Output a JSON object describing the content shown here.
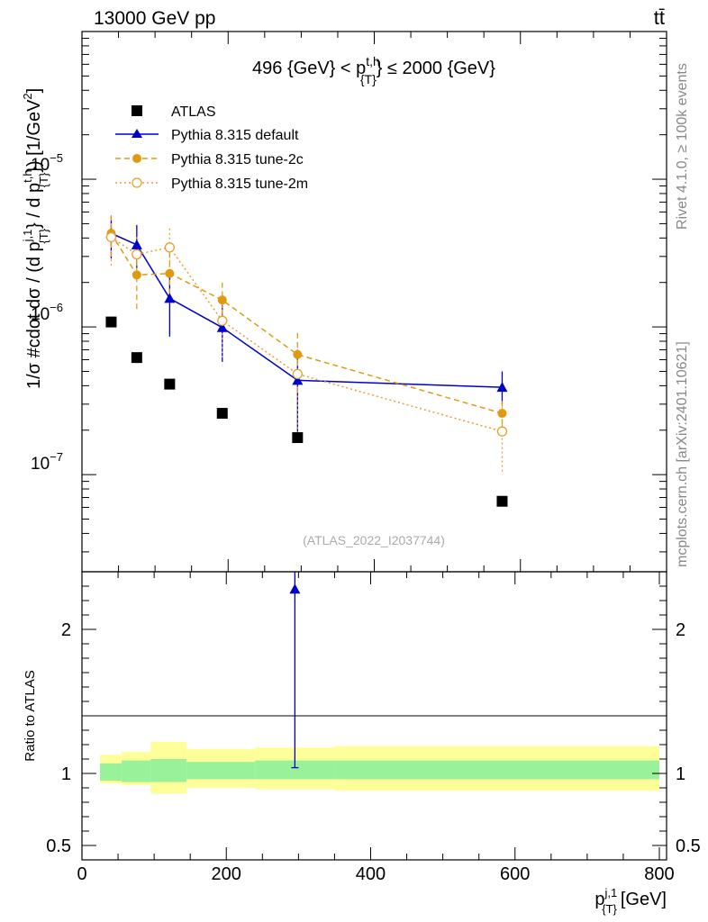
{
  "header": {
    "energy_label": "13000 GeV pp",
    "process_label": "tt̄"
  },
  "side_text": {
    "rivet_label": "Rivet 4.1.0, ≥ 100k events",
    "source_label": "mcplots.cern.ch [arXiv:2401.10621]"
  },
  "colors": {
    "atlas": "#000000",
    "default": "#0000cc",
    "tune2c": "#e09a10",
    "tune2m": "#e6a030",
    "band_inner": "#99f299",
    "band_outer": "#ffff99"
  },
  "chart_data": [
    {
      "type": "scatter",
      "panel": "main",
      "title": "496 {GeV} < p_{T}^{t,h} ≤ 2000 {GeV}",
      "title_parts": {
        "prefix": "496 {GeV} < p",
        "sup": "t,h",
        "sub": "{T}",
        "suffix": "} ≤ 2000 {GeV}"
      },
      "ylabel": "1/σ #cdot dσ / (d p_{T}^{j,1} / d p_{T}^{t,h}) [1/GeV²]",
      "ylabel_parts": {
        "a": "1/σ #cdot dσ / (d p",
        "sup1": "j,1",
        "sub1": "{T}",
        "b": "} / d p",
        "sup2": "t,h",
        "sub2": "{T}",
        "c": "}) [1/GeV",
        "c_sup": "2",
        "d": "]"
      },
      "xlim": [
        0,
        800
      ],
      "ylim": [
        2.2e-08,
        0.0001
      ],
      "yscale": "log",
      "y_tick_labels": [
        {
          "value": 1e-07,
          "base": "10",
          "exp": "−7"
        },
        {
          "value": 1e-06,
          "base": "10",
          "exp": "−6"
        },
        {
          "value": 1e-05,
          "base": "10",
          "exp": "−5"
        }
      ],
      "watermark": "(ATLAS_2022_I2037744)",
      "legend": [
        "ATLAS",
        "Pythia 8.315 default",
        "Pythia 8.315 tune-2c",
        "Pythia 8.315 tune-2m"
      ],
      "series": [
        {
          "name": "ATLAS",
          "style": "square",
          "x": [
            40,
            75,
            120,
            192,
            295,
            575
          ],
          "y": [
            1.08e-06,
            6.2e-07,
            4.1e-07,
            2.6e-07,
            1.78e-07,
            6.6e-08
          ]
        },
        {
          "name": "Pythia 8.315 default",
          "style": "triangle-solid",
          "x": [
            40,
            75,
            120,
            192,
            295,
            575
          ],
          "y": [
            4.3e-06,
            3.6e-06,
            1.56e-06,
            9.9e-07,
            4.35e-07,
            3.9e-07
          ],
          "err_lo": [
            2.9e-06,
            2.5e-06,
            8.6e-07,
            5.8e-07,
            1.8e-07,
            3e-07
          ],
          "err_hi": [
            5.6e-06,
            4.9e-06,
            2.2e-06,
            1.4e-06,
            7e-07,
            5e-07
          ]
        },
        {
          "name": "Pythia 8.315 tune-2c",
          "style": "circle-dashed",
          "x": [
            40,
            75,
            120,
            192,
            295,
            575
          ],
          "y": [
            4.3e-06,
            2.25e-06,
            2.3e-06,
            1.52e-06,
            6.5e-07,
            2.6e-07
          ],
          "err_lo": [
            3e-06,
            1.32e-06,
            1.45e-06,
            1.05e-06,
            3.6e-07,
            1.9e-07
          ],
          "err_hi": [
            5.7e-06,
            3e-06,
            3.2e-06,
            2e-06,
            9.4e-07,
            3.3e-07
          ]
        },
        {
          "name": "Pythia 8.315 tune-2m",
          "style": "circle-open-dotted",
          "x": [
            40,
            75,
            120,
            192,
            295,
            575
          ],
          "y": [
            4.05e-06,
            3.1e-06,
            3.45e-06,
            1.1e-06,
            4.8e-07,
            1.96e-07
          ],
          "err_lo": [
            2.6e-06,
            2.1e-06,
            2.4e-06,
            6.2e-07,
            1.9e-07,
            1.05e-07
          ],
          "err_hi": [
            5.5e-06,
            4.1e-06,
            4.7e-06,
            1.6e-06,
            7.9e-07,
            2.9e-07
          ]
        }
      ]
    },
    {
      "type": "scatter",
      "panel": "ratio",
      "ylabel": "Ratio to ATLAS",
      "xlabel_parts": {
        "p": "p",
        "sup": "j,1",
        "sub": "{T}",
        "unit": "[GeV]"
      },
      "xlim": [
        0,
        810
      ],
      "ylim": [
        0.4,
        2.4
      ],
      "x_ticks": [
        0,
        200,
        400,
        600,
        800
      ],
      "y_ticks": [
        0.5,
        1,
        2
      ],
      "bands": [
        {
          "x0": 25,
          "x1": 55,
          "inner": [
            0.95,
            1.07
          ],
          "outer": [
            0.93,
            1.13
          ]
        },
        {
          "x0": 55,
          "x1": 95,
          "inner": [
            0.94,
            1.09
          ],
          "outer": [
            0.92,
            1.15
          ]
        },
        {
          "x0": 95,
          "x1": 145,
          "inner": [
            0.94,
            1.1
          ],
          "outer": [
            0.86,
            1.22
          ]
        },
        {
          "x0": 145,
          "x1": 240,
          "inner": [
            0.96,
            1.08
          ],
          "outer": [
            0.9,
            1.17
          ]
        },
        {
          "x0": 240,
          "x1": 350,
          "inner": [
            0.96,
            1.09
          ],
          "outer": [
            0.89,
            1.18
          ]
        },
        {
          "x0": 350,
          "x1": 800,
          "inner": [
            0.96,
            1.09
          ],
          "outer": [
            0.88,
            1.19
          ]
        }
      ],
      "series": [
        {
          "name": "Pythia 8.315 default",
          "x": [
            295
          ],
          "y": [
            2.28
          ],
          "err_lo": [
            1.04
          ],
          "err_hi": [
            2.4
          ]
        }
      ]
    }
  ]
}
